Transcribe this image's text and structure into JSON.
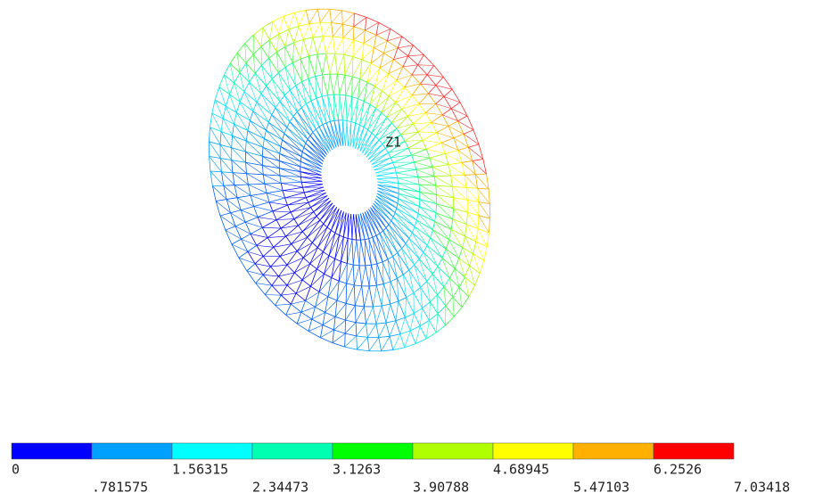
{
  "triad_label": "Z1",
  "legend": {
    "levels": [
      0,
      {
        "value": 0.781575,
        "label": ".781575"
      },
      1.56315,
      2.34473,
      3.1263,
      3.90788,
      4.68945,
      5.47103,
      6.2526,
      7.03418
    ],
    "colors": [
      "#0000ff",
      "#00a0ff",
      "#00ffff",
      "#00ffb0",
      "#00ff00",
      "#b0ff00",
      "#ffff00",
      "#ffb000",
      "#ff0000"
    ]
  }
}
